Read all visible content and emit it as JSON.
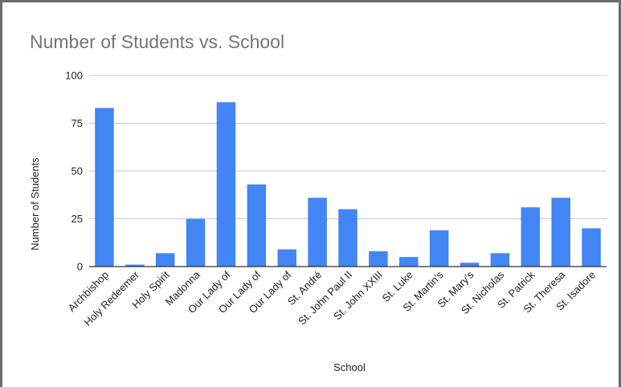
{
  "chart_data": {
    "type": "bar",
    "title": "Number of Students vs. School",
    "xlabel": "School",
    "ylabel": "Number of Students",
    "ylim": [
      0,
      100
    ],
    "yticks": [
      0,
      25,
      50,
      75,
      100
    ],
    "grid": true,
    "bar_color": "#4285f4",
    "categories": [
      "Archbishop",
      "Holy Redeemer",
      "Holy Spirit",
      "Madonna",
      "Our Lady of",
      "Our Lady of",
      "Our Lady of",
      "St. André",
      "St. John Paul II",
      "St. John XXIII",
      "St. Luke",
      "St. Martin's",
      "St. Mary's",
      "St. Nicholas",
      "St. Patrick",
      "St. Theresa",
      "St. Isadore"
    ],
    "values": [
      83,
      1,
      7,
      25,
      86,
      43,
      9,
      36,
      30,
      8,
      5,
      19,
      2,
      7,
      31,
      36,
      20
    ]
  }
}
